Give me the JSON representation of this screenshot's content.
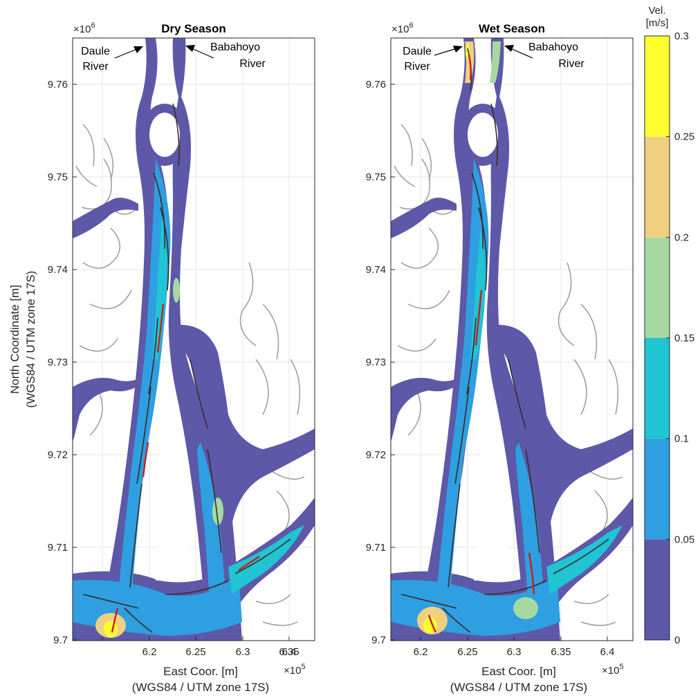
{
  "chart_data": [
    {
      "type": "heatmap",
      "title": "Dry Season",
      "xlabel": "East Coor. [m]",
      "xlabel2": "(WGS84 / UTM zone 17S)",
      "ylabel": "North Coordinate [m]",
      "ylabel2": "(WGS84 / UTM zone 17S)",
      "x_exponent": "×10",
      "x_exponent_power": "5",
      "y_exponent": "×10",
      "y_exponent_power": "6",
      "xlim": [
        6.17,
        6.43
      ],
      "ylim": [
        9.7,
        9.765
      ],
      "x_ticks": [
        "6.2",
        "6.25",
        "6.3",
        "6.35",
        "6.4"
      ],
      "y_ticks": [
        "9.7",
        "9.71",
        "9.72",
        "9.73",
        "9.74",
        "9.75",
        "9.76"
      ],
      "grid": true,
      "annotations": [
        {
          "line1": "Daule",
          "line2": "River"
        },
        {
          "line1": "Babahoyo",
          "line2": "River"
        }
      ]
    },
    {
      "type": "heatmap",
      "title": "Wet Season",
      "xlabel": "East Coor. [m]",
      "xlabel2": "(WGS84 / UTM zone 17S)",
      "x_exponent": "×10",
      "x_exponent_power": "5",
      "y_exponent": "×10",
      "y_exponent_power": "6",
      "xlim": [
        6.17,
        6.43
      ],
      "ylim": [
        9.7,
        9.765
      ],
      "x_ticks": [
        "6.2",
        "6.25",
        "6.3",
        "6.35",
        "6.4"
      ],
      "y_ticks": [
        "9.7",
        "9.71",
        "9.72",
        "9.73",
        "9.74",
        "9.75",
        "9.76"
      ],
      "grid": true,
      "annotations": [
        {
          "line1": "Daule",
          "line2": "River"
        },
        {
          "line1": "Babahoyo",
          "line2": "River"
        }
      ]
    }
  ],
  "colorbar": {
    "title_line1": "Vel.",
    "title_line2": "[m/s]",
    "ticks": [
      "0",
      "0.05",
      "0.1",
      "0.15",
      "0.2",
      "0.25",
      "0.3"
    ],
    "colors": [
      "#5e58a8",
      "#2e9fe0",
      "#20c4d2",
      "#a6d9a0",
      "#f0d080",
      "#ffff30"
    ]
  }
}
